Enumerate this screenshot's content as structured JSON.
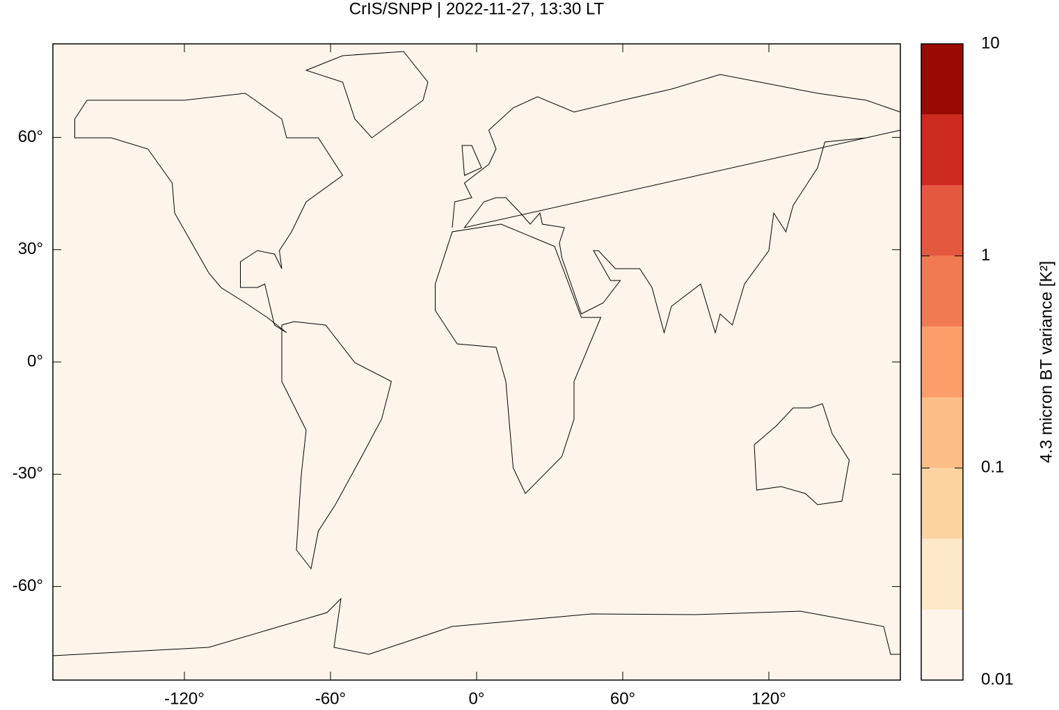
{
  "chart_data": {
    "type": "map",
    "title": "CrIS/SNPP | 2022-11-27, 13:30 LT",
    "xlim": [
      -174,
      174
    ],
    "ylim": [
      -85,
      85
    ],
    "xticks": [
      {
        "value": -120,
        "label": "-120°"
      },
      {
        "value": -60,
        "label": "-60°"
      },
      {
        "value": 0,
        "label": "0°"
      },
      {
        "value": 60,
        "label": "60°"
      },
      {
        "value": 120,
        "label": "120°"
      }
    ],
    "yticks": [
      {
        "value": 60,
        "label": "60°"
      },
      {
        "value": 30,
        "label": "30°"
      },
      {
        "value": 0,
        "label": "0°"
      },
      {
        "value": -30,
        "label": "-30°"
      },
      {
        "value": -60,
        "label": "-60°"
      }
    ],
    "background_color": "#fdf5e9",
    "colorbar": {
      "label": "4.3 micron BT variance [K²]",
      "log": true,
      "lim": [
        0.01,
        10
      ],
      "ticks": [
        0.01,
        0.1,
        1,
        10
      ],
      "levels": [
        0.01,
        0.0215,
        0.0464,
        0.1,
        0.215,
        0.464,
        1,
        2.15,
        4.64,
        10
      ],
      "colors": [
        "#fff5eb",
        "#fde8c9",
        "#fdd3a0",
        "#fcbe86",
        "#fd9e6a",
        "#f27a52",
        "#e4583f",
        "#cd2b1f",
        "#9b0a05"
      ]
    }
  }
}
